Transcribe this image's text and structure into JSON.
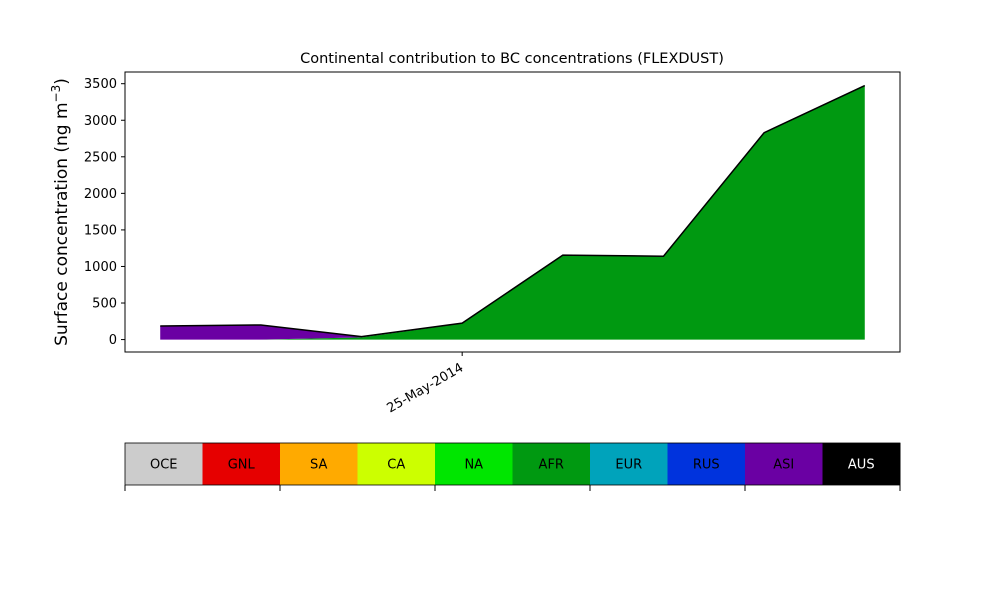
{
  "chart_data": {
    "type": "area",
    "stacked": true,
    "title": "Continental contribution to BC concentrations (FLEXDUST)",
    "ylabel_main": "Surface concentration (ng m",
    "ylabel_sup": "−3",
    "ylabel_close": ")",
    "xlabel": "",
    "x": [
      "2014-05-22",
      "2014-05-23",
      "2014-05-24",
      "2014-05-25",
      "2014-05-26",
      "2014-05-27",
      "2014-05-28",
      "2014-05-29"
    ],
    "ylim": [
      -170,
      3660
    ],
    "xlim_days": [
      -0.35,
      7.35
    ],
    "yticks": [
      0,
      500,
      1000,
      1500,
      2000,
      2500,
      3000,
      3500
    ],
    "xticks": [
      {
        "value": "2014-05-25",
        "label": "25-May-2014"
      }
    ],
    "grid": false,
    "series": [
      {
        "name": "OCE",
        "color": "#cccccc",
        "values": [
          0,
          0,
          0,
          0,
          0,
          0,
          0,
          0
        ]
      },
      {
        "name": "GNL",
        "color": "#e60000",
        "values": [
          0,
          0,
          0,
          0,
          0,
          0,
          0,
          0
        ]
      },
      {
        "name": "SA",
        "color": "#ffaa00",
        "values": [
          0,
          0,
          0,
          0,
          0,
          0,
          0,
          0
        ]
      },
      {
        "name": "CA",
        "color": "#ccff00",
        "values": [
          0,
          0,
          0,
          0,
          0,
          0,
          0,
          0
        ]
      },
      {
        "name": "NA",
        "color": "#00e600",
        "values": [
          0,
          0,
          0,
          0,
          0,
          0,
          0,
          0
        ]
      },
      {
        "name": "AFR",
        "color": "#009911",
        "values": [
          0,
          0,
          30,
          220,
          1150,
          1135,
          2830,
          3475
        ]
      },
      {
        "name": "EUR",
        "color": "#00a3bb",
        "values": [
          0,
          0,
          0,
          0,
          0,
          0,
          0,
          0
        ]
      },
      {
        "name": "RUS",
        "color": "#0033dd",
        "values": [
          0,
          0,
          0,
          0,
          0,
          0,
          0,
          0
        ]
      },
      {
        "name": "ASI",
        "color": "#6a00a3",
        "values": [
          185,
          200,
          10,
          5,
          5,
          5,
          0,
          0
        ]
      },
      {
        "name": "AUS",
        "color": "#000000",
        "values": [
          0,
          0,
          0,
          0,
          0,
          0,
          0,
          0
        ]
      }
    ],
    "legend": {
      "placement": "bottom",
      "style": "colorbar",
      "entries": [
        {
          "label": "OCE",
          "color": "#cccccc",
          "text_color": "#000000"
        },
        {
          "label": "GNL",
          "color": "#e60000",
          "text_color": "#000000"
        },
        {
          "label": "SA",
          "color": "#ffaa00",
          "text_color": "#000000"
        },
        {
          "label": "CA",
          "color": "#ccff00",
          "text_color": "#000000"
        },
        {
          "label": "NA",
          "color": "#00e600",
          "text_color": "#000000"
        },
        {
          "label": "AFR",
          "color": "#009911",
          "text_color": "#000000"
        },
        {
          "label": "EUR",
          "color": "#00a3bb",
          "text_color": "#000000"
        },
        {
          "label": "RUS",
          "color": "#0033dd",
          "text_color": "#000000"
        },
        {
          "label": "ASI",
          "color": "#6a00a3",
          "text_color": "#000000"
        },
        {
          "label": "AUS",
          "color": "#000000",
          "text_color": "#ffffff"
        }
      ]
    }
  }
}
